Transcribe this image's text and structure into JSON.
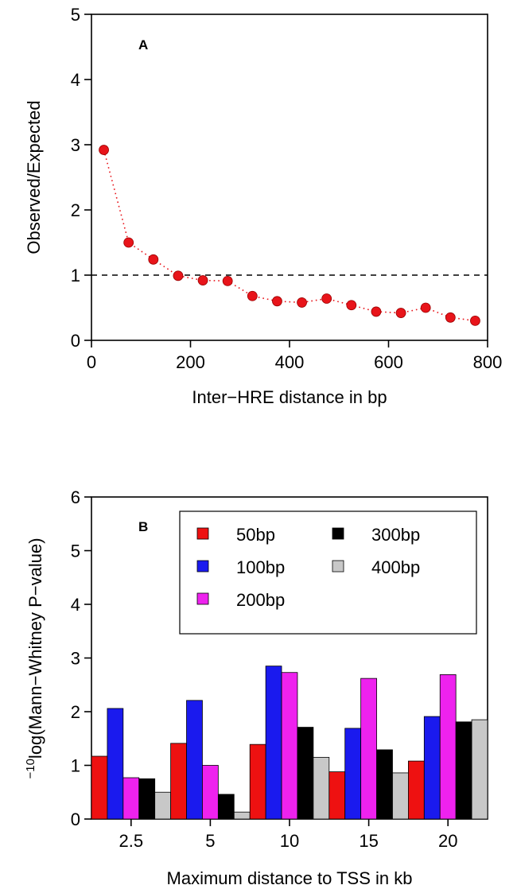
{
  "chart_data": [
    {
      "type": "scatter",
      "panel_label": "A",
      "xlabel": "Inter−HRE distance in bp",
      "ylabel": "Observed/Expected",
      "xlim": [
        0,
        800
      ],
      "ylim": [
        0,
        5
      ],
      "xticks": [
        0,
        200,
        400,
        600,
        800
      ],
      "yticks": [
        0,
        1,
        2,
        3,
        4,
        5
      ],
      "reference_line": 1,
      "marker_color": "#e8141a",
      "line_style": "dotted",
      "grid": false,
      "x": [
        25,
        75,
        125,
        175,
        225,
        275,
        325,
        375,
        425,
        475,
        525,
        575,
        625,
        675,
        725,
        775
      ],
      "y": [
        2.92,
        1.5,
        1.24,
        0.99,
        0.92,
        0.91,
        0.68,
        0.6,
        0.58,
        0.64,
        0.54,
        0.44,
        0.42,
        0.5,
        0.35,
        0.3
      ]
    },
    {
      "type": "bar",
      "panel_label": "B",
      "xlabel": "Maximum distance to TSS in kb",
      "ylabel_sup": "−10",
      "ylabel_main": "log(Mann−Whitney P−value)",
      "ylim": [
        0,
        6
      ],
      "yticks": [
        0,
        1,
        2,
        3,
        4,
        5,
        6
      ],
      "categories": [
        "2.5",
        "5",
        "10",
        "15",
        "20"
      ],
      "legend_position": "top-right",
      "grid": false,
      "series": [
        {
          "name": "50bp",
          "color": "#ee1111",
          "values": [
            1.17,
            1.41,
            1.39,
            0.88,
            1.08
          ]
        },
        {
          "name": "100bp",
          "color": "#1a1aee",
          "values": [
            2.06,
            2.21,
            2.85,
            1.69,
            1.91
          ]
        },
        {
          "name": "200bp",
          "color": "#ee22ee",
          "values": [
            0.77,
            1.0,
            2.73,
            2.62,
            2.69
          ]
        },
        {
          "name": "300bp",
          "color": "#000000",
          "values": [
            0.75,
            0.46,
            1.71,
            1.29,
            1.81
          ]
        },
        {
          "name": "400bp",
          "color": "#c8c8c8",
          "values": [
            0.5,
            0.13,
            1.15,
            0.86,
            1.85
          ]
        }
      ]
    }
  ]
}
